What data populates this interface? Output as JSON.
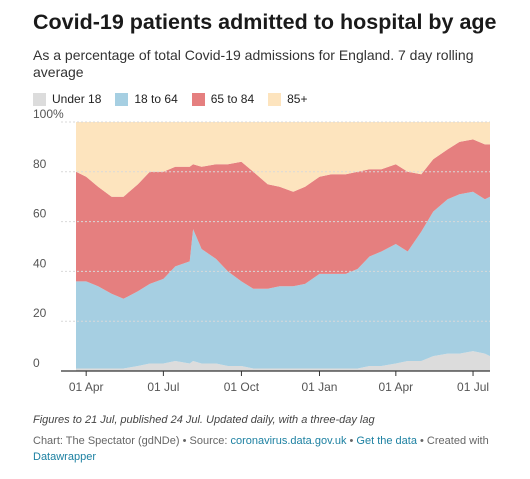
{
  "title": "Covid-19 patients admitted to hospital by age",
  "subtitle": "As a percentage of total Covid-19 admissions for England. 7 day rolling average",
  "colors": {
    "under18": "#dcdcdc",
    "age18to64": "#a6cfe2",
    "age65to84": "#e57f7f",
    "age85plus": "#fde4be",
    "grid": "#d9d9d9",
    "link": "#1d81a2"
  },
  "footer": {
    "note": "Figures to 21 Jul, published 24 Jul. Updated daily, with a three-day lag",
    "chart_by": "Chart: The Spectator (gdNDe) • Source: ",
    "source_link": "coronavirus.data.gov.uk",
    "sep1": " • ",
    "get_data": "Get the data",
    "created_with": " • Created with ",
    "datawrapper": "Datawrapper"
  },
  "chart_data": {
    "type": "area",
    "stacked": true,
    "title": "Covid-19 patients admitted to hospital by age",
    "subtitle": "As a percentage of total Covid-19 admissions for England. 7 day rolling average",
    "x_unit": "date",
    "x": [
      "2020-03-20",
      "2020-04-01",
      "2020-04-15",
      "2020-05-01",
      "2020-05-15",
      "2020-06-01",
      "2020-06-15",
      "2020-07-01",
      "2020-07-15",
      "2020-08-01",
      "2020-08-05",
      "2020-08-15",
      "2020-09-01",
      "2020-09-15",
      "2020-10-01",
      "2020-10-15",
      "2020-11-01",
      "2020-11-15",
      "2020-12-01",
      "2020-12-15",
      "2021-01-01",
      "2021-01-15",
      "2021-02-01",
      "2021-02-15",
      "2021-03-01",
      "2021-03-15",
      "2021-04-01",
      "2021-04-15",
      "2021-05-01",
      "2021-05-15",
      "2021-06-01",
      "2021-06-15",
      "2021-07-01",
      "2021-07-15",
      "2021-07-21"
    ],
    "series": [
      {
        "name": "Under 18",
        "values": [
          1,
          1,
          1,
          1,
          1,
          2,
          3,
          3,
          4,
          3,
          4,
          3,
          3,
          2,
          2,
          1,
          1,
          1,
          1,
          1,
          1,
          1,
          1,
          1,
          2,
          2,
          3,
          4,
          4,
          6,
          7,
          7,
          8,
          7,
          6
        ]
      },
      {
        "name": "18 to 64",
        "values": [
          35,
          35,
          33,
          30,
          28,
          30,
          32,
          34,
          38,
          41,
          53,
          46,
          42,
          38,
          34,
          32,
          32,
          33,
          33,
          34,
          38,
          38,
          38,
          40,
          44,
          46,
          48,
          44,
          52,
          58,
          62,
          64,
          64,
          62,
          64
        ]
      },
      {
        "name": "65 to 84",
        "values": [
          44,
          42,
          40,
          39,
          41,
          43,
          45,
          43,
          40,
          38,
          26,
          33,
          38,
          43,
          48,
          47,
          42,
          40,
          38,
          39,
          39,
          40,
          40,
          39,
          35,
          33,
          32,
          32,
          23,
          21,
          20,
          21,
          21,
          22,
          21
        ]
      },
      {
        "name": "85+",
        "values": [
          20,
          22,
          26,
          30,
          30,
          25,
          20,
          20,
          18,
          18,
          17,
          18,
          17,
          17,
          16,
          20,
          25,
          26,
          28,
          26,
          22,
          21,
          21,
          20,
          19,
          19,
          17,
          20,
          21,
          15,
          11,
          8,
          7,
          9,
          9
        ]
      }
    ],
    "ylim": [
      0,
      100
    ],
    "yticks": [
      "0",
      "20",
      "40",
      "60",
      "80",
      "100%"
    ],
    "xticks": [
      {
        "label": "01 Apr",
        "date": "2020-04-01"
      },
      {
        "label": "01 Jul",
        "date": "2020-07-01"
      },
      {
        "label": "01 Oct",
        "date": "2020-10-01"
      },
      {
        "label": "01 Jan",
        "date": "2021-01-01"
      },
      {
        "label": "01 Apr",
        "date": "2021-04-01"
      },
      {
        "label": "01 Jul",
        "date": "2021-07-01"
      }
    ],
    "grid": true,
    "legend_position": "top-left"
  }
}
